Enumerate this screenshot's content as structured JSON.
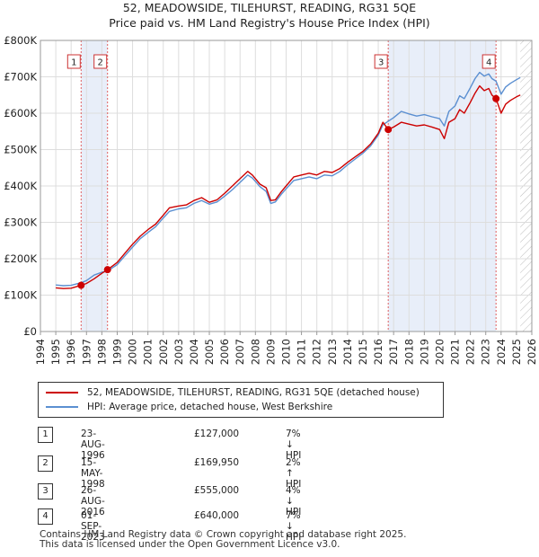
{
  "chart_data": {
    "type": "line",
    "title": "52, MEADOWSIDE, TILEHURST, READING, RG31 5QE",
    "subtitle": "Price paid vs. HM Land Registry's House Price Index (HPI)",
    "xlabel": "",
    "ylabel": "",
    "xlim": [
      1994,
      2026
    ],
    "ylim": [
      0,
      800000
    ],
    "x_ticks": [
      "1994",
      "1995",
      "1996",
      "1997",
      "1998",
      "1999",
      "2000",
      "2001",
      "2002",
      "2003",
      "2004",
      "2005",
      "2006",
      "2007",
      "2008",
      "2009",
      "2010",
      "2011",
      "2012",
      "2013",
      "2014",
      "2015",
      "2016",
      "2017",
      "2018",
      "2019",
      "2020",
      "2021",
      "2022",
      "2023",
      "2024",
      "2025",
      "2026"
    ],
    "y_ticks": [
      "£0",
      "£100K",
      "£200K",
      "£300K",
      "£400K",
      "£500K",
      "£600K",
      "£700K",
      "£800K"
    ],
    "y_tick_values": [
      0,
      100000,
      200000,
      300000,
      400000,
      500000,
      600000,
      700000,
      800000
    ],
    "grid": true,
    "data_end": 2025.25,
    "series": [
      {
        "name": "52, MEADOWSIDE, TILEHURST, READING, RG31 5QE (detached house)",
        "color": "#cc0000",
        "points": [
          [
            1995.0,
            120000
          ],
          [
            1995.5,
            118000
          ],
          [
            1996.0,
            119000
          ],
          [
            1996.65,
            127000
          ],
          [
            1997.0,
            132000
          ],
          [
            1997.5,
            145000
          ],
          [
            1998.0,
            160000
          ],
          [
            1998.37,
            169950
          ],
          [
            1999.0,
            190000
          ],
          [
            1999.5,
            215000
          ],
          [
            2000.0,
            240000
          ],
          [
            2000.5,
            262000
          ],
          [
            2001.0,
            280000
          ],
          [
            2001.5,
            295000
          ],
          [
            2002.0,
            320000
          ],
          [
            2002.4,
            340000
          ],
          [
            2003.0,
            345000
          ],
          [
            2003.5,
            348000
          ],
          [
            2004.0,
            360000
          ],
          [
            2004.5,
            368000
          ],
          [
            2005.0,
            355000
          ],
          [
            2005.5,
            362000
          ],
          [
            2006.0,
            380000
          ],
          [
            2006.5,
            400000
          ],
          [
            2007.0,
            420000
          ],
          [
            2007.5,
            440000
          ],
          [
            2007.8,
            430000
          ],
          [
            2008.3,
            405000
          ],
          [
            2008.7,
            395000
          ],
          [
            2009.0,
            360000
          ],
          [
            2009.3,
            362000
          ],
          [
            2009.7,
            385000
          ],
          [
            2010.0,
            400000
          ],
          [
            2010.5,
            425000
          ],
          [
            2011.0,
            430000
          ],
          [
            2011.5,
            435000
          ],
          [
            2012.0,
            430000
          ],
          [
            2012.5,
            440000
          ],
          [
            2013.0,
            437000
          ],
          [
            2013.5,
            448000
          ],
          [
            2014.0,
            465000
          ],
          [
            2014.5,
            480000
          ],
          [
            2015.0,
            495000
          ],
          [
            2015.5,
            515000
          ],
          [
            2016.0,
            545000
          ],
          [
            2016.3,
            575000
          ],
          [
            2016.65,
            555000
          ],
          [
            2017.0,
            562000
          ],
          [
            2017.5,
            575000
          ],
          [
            2018.0,
            570000
          ],
          [
            2018.5,
            565000
          ],
          [
            2019.0,
            568000
          ],
          [
            2019.5,
            562000
          ],
          [
            2020.0,
            555000
          ],
          [
            2020.3,
            530000
          ],
          [
            2020.6,
            575000
          ],
          [
            2021.0,
            585000
          ],
          [
            2021.3,
            610000
          ],
          [
            2021.6,
            600000
          ],
          [
            2022.0,
            630000
          ],
          [
            2022.3,
            655000
          ],
          [
            2022.6,
            675000
          ],
          [
            2022.9,
            662000
          ],
          [
            2023.2,
            668000
          ],
          [
            2023.4,
            650000
          ],
          [
            2023.67,
            640000
          ],
          [
            2024.0,
            600000
          ],
          [
            2024.3,
            625000
          ],
          [
            2024.6,
            635000
          ],
          [
            2025.0,
            645000
          ],
          [
            2025.25,
            650000
          ]
        ]
      },
      {
        "name": "HPI: Average price, detached house, West Berkshire",
        "color": "#5b8fd1",
        "points": [
          [
            1995.0,
            128000
          ],
          [
            1995.5,
            126000
          ],
          [
            1996.0,
            127000
          ],
          [
            1996.65,
            134000
          ],
          [
            1997.0,
            140000
          ],
          [
            1997.5,
            155000
          ],
          [
            1998.0,
            163000
          ],
          [
            1998.37,
            166000
          ],
          [
            1999.0,
            184000
          ],
          [
            1999.5,
            208000
          ],
          [
            2000.0,
            232000
          ],
          [
            2000.5,
            255000
          ],
          [
            2001.0,
            272000
          ],
          [
            2001.5,
            288000
          ],
          [
            2002.0,
            312000
          ],
          [
            2002.4,
            330000
          ],
          [
            2003.0,
            337000
          ],
          [
            2003.5,
            340000
          ],
          [
            2004.0,
            352000
          ],
          [
            2004.5,
            360000
          ],
          [
            2005.0,
            350000
          ],
          [
            2005.5,
            356000
          ],
          [
            2006.0,
            372000
          ],
          [
            2006.5,
            390000
          ],
          [
            2007.0,
            410000
          ],
          [
            2007.5,
            430000
          ],
          [
            2007.8,
            422000
          ],
          [
            2008.3,
            398000
          ],
          [
            2008.7,
            385000
          ],
          [
            2009.0,
            352000
          ],
          [
            2009.3,
            356000
          ],
          [
            2009.7,
            378000
          ],
          [
            2010.0,
            392000
          ],
          [
            2010.5,
            415000
          ],
          [
            2011.0,
            420000
          ],
          [
            2011.5,
            425000
          ],
          [
            2012.0,
            420000
          ],
          [
            2012.5,
            430000
          ],
          [
            2013.0,
            428000
          ],
          [
            2013.5,
            440000
          ],
          [
            2014.0,
            458000
          ],
          [
            2014.5,
            474000
          ],
          [
            2015.0,
            490000
          ],
          [
            2015.5,
            510000
          ],
          [
            2016.0,
            540000
          ],
          [
            2016.3,
            568000
          ],
          [
            2016.65,
            578000
          ],
          [
            2017.0,
            588000
          ],
          [
            2017.5,
            605000
          ],
          [
            2018.0,
            598000
          ],
          [
            2018.5,
            592000
          ],
          [
            2019.0,
            596000
          ],
          [
            2019.5,
            590000
          ],
          [
            2020.0,
            585000
          ],
          [
            2020.3,
            565000
          ],
          [
            2020.6,
            605000
          ],
          [
            2021.0,
            620000
          ],
          [
            2021.3,
            648000
          ],
          [
            2021.6,
            640000
          ],
          [
            2022.0,
            670000
          ],
          [
            2022.3,
            695000
          ],
          [
            2022.6,
            712000
          ],
          [
            2022.9,
            702000
          ],
          [
            2023.2,
            708000
          ],
          [
            2023.4,
            695000
          ],
          [
            2023.67,
            688000
          ],
          [
            2024.0,
            652000
          ],
          [
            2024.3,
            672000
          ],
          [
            2024.6,
            682000
          ],
          [
            2025.0,
            692000
          ],
          [
            2025.25,
            698000
          ]
        ]
      }
    ],
    "sales": [
      {
        "label": "1",
        "x": 1996.65,
        "y": 127000
      },
      {
        "label": "2",
        "x": 1998.37,
        "y": 169950
      },
      {
        "label": "3",
        "x": 2016.65,
        "y": 555000
      },
      {
        "label": "4",
        "x": 2023.67,
        "y": 640000
      }
    ],
    "shaded_periods": [
      [
        1996.65,
        1998.37
      ],
      [
        2016.65,
        2023.67
      ]
    ]
  },
  "legend": {
    "property": "52, MEADOWSIDE, TILEHURST, READING, RG31 5QE (detached house)",
    "hpi": "HPI: Average price, detached house, West Berkshire",
    "property_color": "#cc0000",
    "hpi_color": "#5b8fd1"
  },
  "sales_table": [
    {
      "num": "1",
      "date": "23-AUG-1996",
      "price": "£127,000",
      "hpi": "7% ↓ HPI"
    },
    {
      "num": "2",
      "date": "15-MAY-1998",
      "price": "£169,950",
      "hpi": "2% ↑ HPI"
    },
    {
      "num": "3",
      "date": "26-AUG-2016",
      "price": "£555,000",
      "hpi": "4% ↓ HPI"
    },
    {
      "num": "4",
      "date": "01-SEP-2023",
      "price": "£640,000",
      "hpi": "7% ↓ HPI"
    }
  ],
  "footer": {
    "line1": "Contains HM Land Registry data © Crown copyright and database right 2025.",
    "line2": "This data is licensed under the Open Government Licence v3.0."
  }
}
